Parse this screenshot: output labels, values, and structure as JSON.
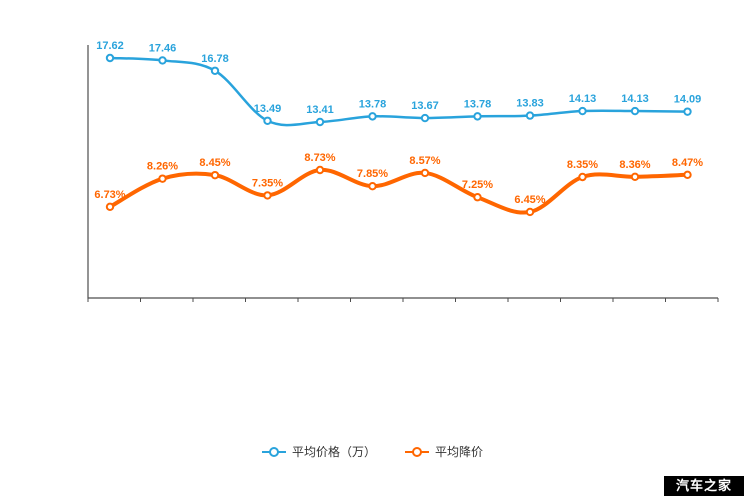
{
  "chart_data": {
    "type": "line",
    "title": "",
    "grid": false,
    "legend_position": "bottom",
    "series": [
      {
        "name": "平均价格（万）",
        "color": "#29A3DC",
        "values": [
          17.62,
          17.46,
          16.78,
          13.49,
          13.41,
          13.78,
          13.67,
          13.78,
          13.83,
          14.13,
          14.13,
          14.09
        ],
        "labels": [
          "17.62",
          "17.46",
          "16.78",
          "13.49",
          "13.41",
          "13.78",
          "13.67",
          "13.78",
          "13.83",
          "14.13",
          "14.13",
          "14.09"
        ]
      },
      {
        "name": "平均降价",
        "color": "#FF6600",
        "values": [
          6.73,
          8.26,
          8.45,
          7.35,
          8.73,
          7.85,
          8.57,
          7.25,
          6.45,
          8.35,
          8.36,
          8.47
        ],
        "labels": [
          "6.73%",
          "8.26%",
          "8.45%",
          "7.35%",
          "8.73%",
          "7.85%",
          "8.57%",
          "7.25%",
          "6.45%",
          "8.35%",
          "8.36%",
          "8.47%"
        ]
      }
    ]
  },
  "legend": {
    "items": [
      {
        "label": "平均价格（万）"
      },
      {
        "label": "平均降价"
      }
    ]
  },
  "watermark": {
    "text": "汽车之家"
  }
}
